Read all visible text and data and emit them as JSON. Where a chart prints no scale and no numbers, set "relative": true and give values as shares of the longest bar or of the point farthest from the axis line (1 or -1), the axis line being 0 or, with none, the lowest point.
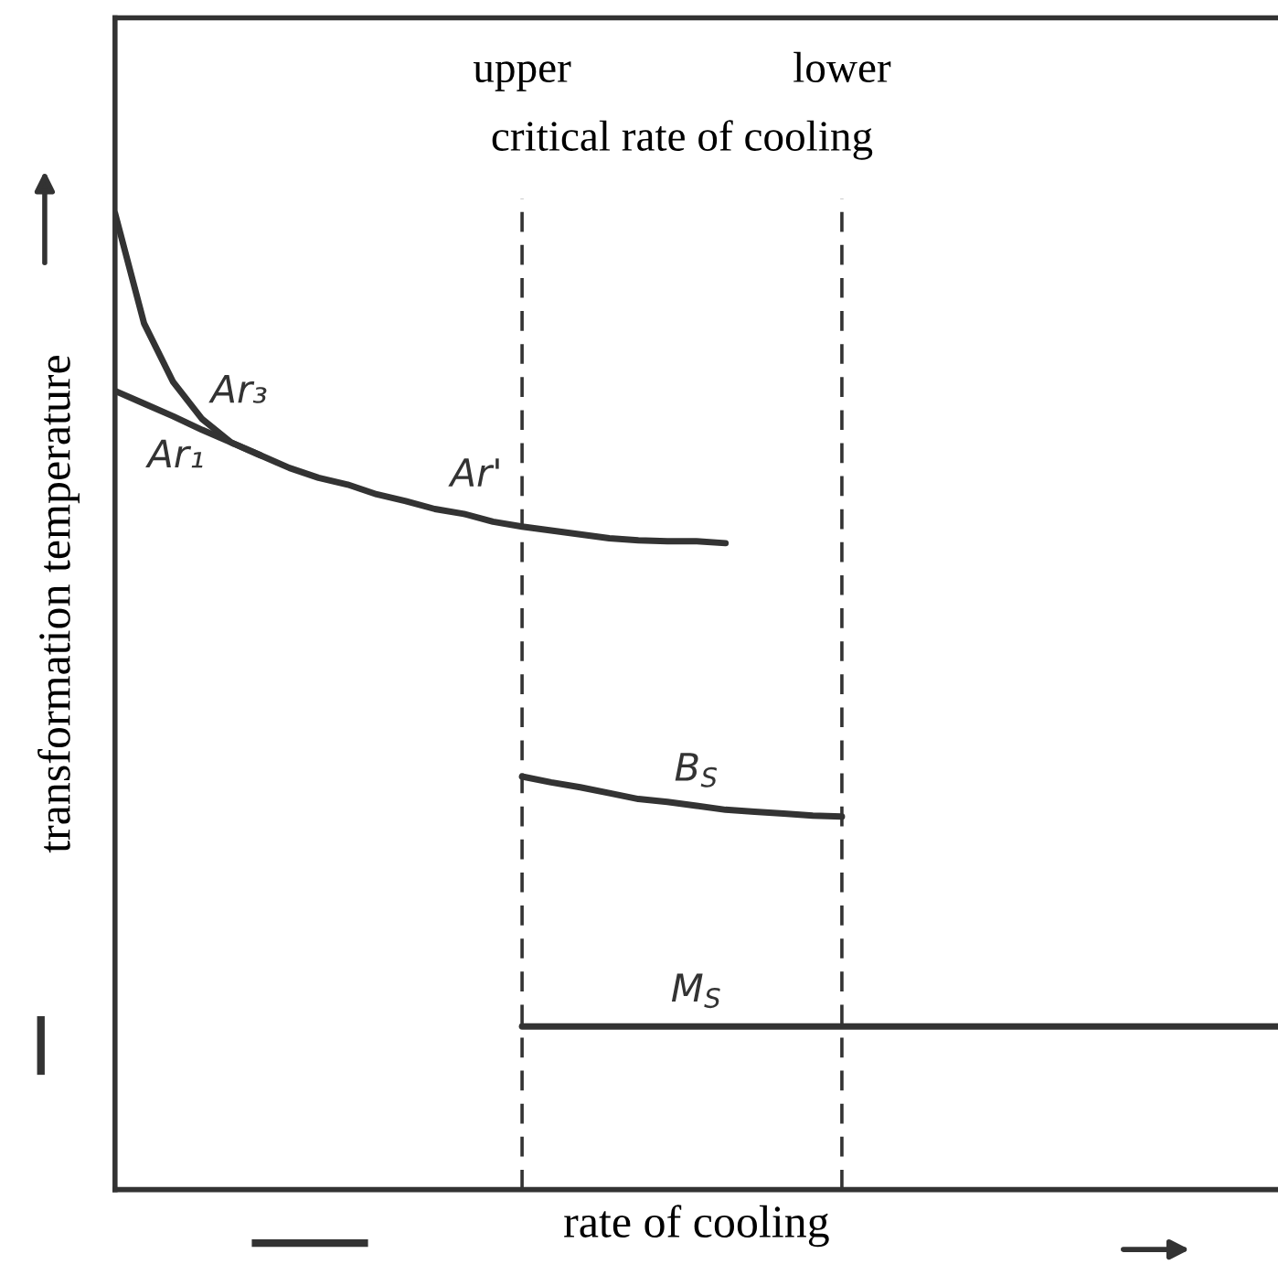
{
  "chart_data": {
    "type": "line",
    "relative": true,
    "xlabel": "rate of cooling",
    "ylabel": "transformation temperature",
    "categories": [
      null,
      null,
      null,
      null,
      null,
      null,
      null,
      null,
      null,
      null,
      null,
      null,
      null,
      null,
      null,
      null,
      null,
      null,
      null,
      null,
      null,
      null,
      null,
      null,
      null,
      null,
      null,
      null,
      null,
      null,
      null,
      null,
      null,
      null,
      null,
      null,
      null,
      null,
      null,
      null,
      null
    ],
    "series": [
      {
        "name": "Ar₃",
        "color": "#333333",
        "values": [
          1,
          0.887,
          0.827,
          0.789,
          0.765,
          0.752,
          0.739,
          0.729,
          0.722,
          0.712,
          0.705,
          0.697,
          0.692,
          0.684,
          0.679,
          0.675,
          0.671,
          0.667,
          0.665,
          0.664,
          0.664,
          0.662,
          null,
          null,
          null,
          null,
          null,
          null,
          null,
          null,
          null,
          null,
          null,
          null,
          null,
          null,
          null,
          null,
          null,
          null,
          null
        ]
      },
      {
        "name": "Ar₁",
        "color": "#333333",
        "values": [
          0.818,
          0.805,
          0.792,
          0.778,
          0.765,
          0.752,
          null,
          null,
          null,
          null,
          null,
          null,
          null,
          null,
          null,
          null,
          null,
          null,
          null,
          null,
          null,
          null,
          null,
          null,
          null,
          null,
          null,
          null,
          null,
          null,
          null,
          null,
          null,
          null,
          null,
          null,
          null,
          null,
          null,
          null,
          null
        ]
      },
      {
        "name": "B$_{S}$",
        "color": "#333333",
        "values": [
          null,
          null,
          null,
          null,
          null,
          null,
          null,
          null,
          null,
          null,
          null,
          null,
          null,
          null,
          0.423,
          0.417,
          0.412,
          0.406,
          0.4,
          0.397,
          0.393,
          0.389,
          0.387,
          0.385,
          0.383,
          0.382,
          null,
          null,
          null,
          null,
          null,
          null,
          null,
          null,
          null,
          null,
          null,
          null,
          null,
          null,
          null
        ]
      },
      {
        "name": "M$_{S}$",
        "color": "#333333",
        "values": [
          null,
          null,
          null,
          null,
          null,
          null,
          null,
          null,
          null,
          null,
          null,
          null,
          null,
          null,
          0.167,
          0.167,
          0.167,
          0.167,
          0.167,
          0.167,
          0.167,
          0.167,
          0.167,
          0.167,
          0.167,
          0.167,
          0.167,
          0.167,
          0.167,
          0.167,
          0.167,
          0.167,
          0.167,
          0.167,
          0.167,
          0.167,
          0.167,
          0.167,
          0.167,
          0.167,
          0.167
        ]
      }
    ],
    "annotations": [
      "upper",
      "lower",
      "critical rate of cooling",
      {
        "text": "Ar'",
        "y": 0.679
      }
    ],
    "legend": false,
    "marker": "none",
    "line_style": "solid"
  }
}
